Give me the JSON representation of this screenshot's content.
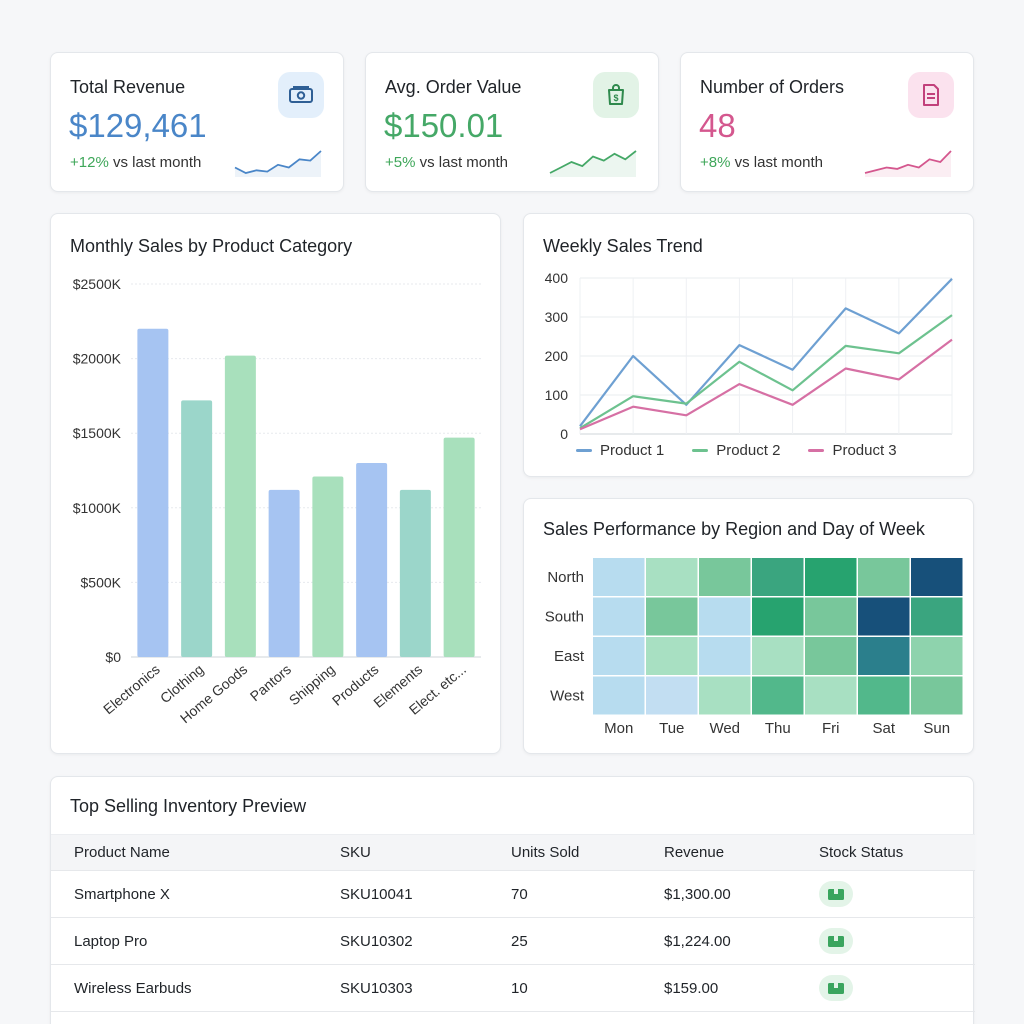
{
  "kpis": [
    {
      "title": "Total Revenue",
      "value": "$129,461",
      "change_pct": "+12%",
      "change_text": " vs last month",
      "color": "#4a86c8",
      "icon": "cash-icon",
      "icon_bg": "#e3effb",
      "spark": [
        12,
        8,
        10,
        9,
        14,
        12,
        18,
        17,
        24
      ]
    },
    {
      "title": "Avg. Order Value",
      "value": "$150.01",
      "change_pct": "+5%",
      "change_text": " vs last month",
      "color": "#45a867",
      "icon": "shopping-bag-dollar-icon",
      "icon_bg": "#e2f3e6",
      "spark": [
        8,
        12,
        16,
        13,
        20,
        17,
        22,
        18,
        24
      ]
    },
    {
      "title": "Number of Orders",
      "value": "48",
      "change_pct": "+8%",
      "change_text": " vs last month",
      "color": "#d4578e",
      "icon": "document-icon",
      "icon_bg": "#fbe2ee",
      "spark": [
        6,
        8,
        10,
        9,
        12,
        10,
        16,
        14,
        22
      ]
    }
  ],
  "bar_panel": {
    "title": "Monthly Sales by Product Category"
  },
  "line_panel": {
    "title": "Weekly Sales Trend"
  },
  "heat_panel": {
    "title": "Sales Performance by Region and Day of Week"
  },
  "chart_data": [
    {
      "type": "bar",
      "title": "Monthly Sales by Product Category",
      "categories": [
        "Electronics",
        "Clothing",
        "Home Goods",
        "Pantors",
        "Shipping",
        "Products",
        "Elements",
        "Elect. etc..."
      ],
      "values": [
        2200,
        1720,
        2020,
        1120,
        1210,
        1300,
        1120,
        1470
      ],
      "bar_colors": [
        "#a6c4f2",
        "#9bd6ca",
        "#a8e0bc",
        "#a6c4f2",
        "#a8e0bc",
        "#a6c4f2",
        "#9bd6ca",
        "#a8e0bc"
      ],
      "yticks": [
        "$0",
        "$500K",
        "$1000K",
        "$1500K",
        "$2000K",
        "$2500K"
      ],
      "ylim": [
        0,
        2500
      ],
      "grid": true
    },
    {
      "type": "line",
      "title": "Weekly Sales Trend",
      "yticks": [
        "0",
        "100",
        "200",
        "300",
        "400"
      ],
      "ylim": [
        0,
        400
      ],
      "legend": "bottom",
      "series": [
        {
          "name": "Product 1",
          "color": "#6ea0d2",
          "values": [
            20,
            200,
            75,
            228,
            165,
            322,
            258,
            398
          ]
        },
        {
          "name": "Product 2",
          "color": "#6dc28f",
          "values": [
            15,
            97,
            78,
            185,
            112,
            226,
            207,
            305
          ]
        },
        {
          "name": "Product 3",
          "color": "#d670a4",
          "values": [
            12,
            70,
            48,
            128,
            75,
            168,
            140,
            242
          ]
        }
      ]
    },
    {
      "type": "heatmap",
      "title": "Sales Performance by Region and Day of Week",
      "rows": [
        "North",
        "South",
        "East",
        "West"
      ],
      "columns": [
        "Mon",
        "Tue",
        "Wed",
        "Thu",
        "Fri",
        "Sat",
        "Sun"
      ],
      "values": [
        [
          2,
          3,
          5,
          7,
          8,
          5,
          10
        ],
        [
          2,
          5,
          2,
          8,
          5,
          10,
          7
        ],
        [
          2,
          3,
          2,
          3,
          5,
          9,
          4
        ],
        [
          2,
          1,
          3,
          6,
          3,
          6,
          5
        ]
      ]
    }
  ],
  "table": {
    "title": "Top Selling Inventory Preview",
    "headers": [
      "Product Name",
      "SKU",
      "Units Sold",
      "Revenue",
      "Stock Status"
    ],
    "rows": [
      {
        "name": "Smartphone X",
        "sku": "SKU10041",
        "units": "70",
        "revenue": "$1,300.00",
        "stock_icon": "in-stock-box-icon"
      },
      {
        "name": "Laptop Pro",
        "sku": "SKU10302",
        "units": "25",
        "revenue": "$1,224.00",
        "stock_icon": "in-stock-box-icon"
      },
      {
        "name": "Wireless Earbuds",
        "sku": "SKU10303",
        "units": "10",
        "revenue": "$159.00",
        "stock_icon": "in-stock-box-icon"
      }
    ]
  }
}
